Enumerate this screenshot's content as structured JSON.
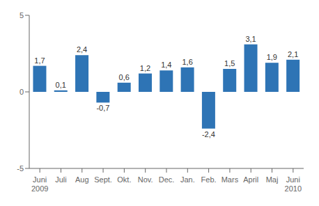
{
  "chart_data": {
    "type": "bar",
    "categories": [
      "Juni\n2009",
      "Juli",
      "Aug",
      "Sept.",
      "Okt.",
      "Nov.",
      "Dec.",
      "Jan.",
      "Feb.",
      "Mars",
      "April",
      "Maj",
      "Juni\n2010"
    ],
    "values": [
      1.7,
      0.1,
      2.4,
      -0.7,
      0.6,
      1.2,
      1.4,
      1.6,
      -2.4,
      1.5,
      3.1,
      1.9,
      2.1
    ],
    "value_labels": [
      "1,7",
      "0,1",
      "2,4",
      "-0,7",
      "0,6",
      "1,2",
      "1,4",
      "1,6",
      "-2,4",
      "1,5",
      "3,1",
      "1,9",
      "2,1"
    ],
    "color": "#2E74B5",
    "ylim": [
      -5,
      5
    ],
    "yticks": [
      -5,
      0,
      5
    ],
    "data_labels": true,
    "grid": false
  }
}
